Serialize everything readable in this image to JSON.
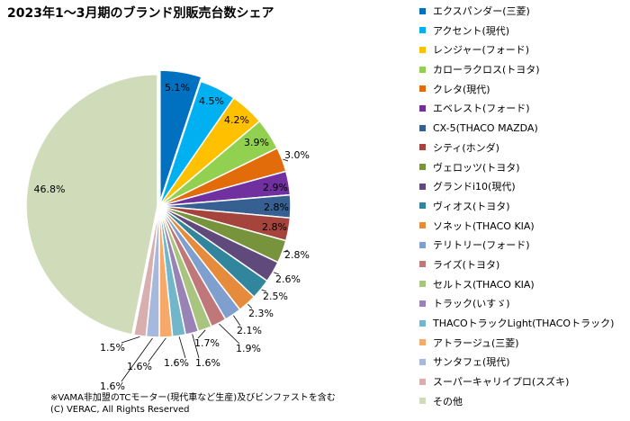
{
  "chart_data": {
    "type": "pie",
    "title": "2023年1〜3月期のブランド別販売台数シェア",
    "slices": [
      {
        "label": "エクスパンダー(三菱)",
        "value": 5.1,
        "color": "#0070c0"
      },
      {
        "label": "アクセント(現代)",
        "value": 4.5,
        "color": "#00b0f0"
      },
      {
        "label": "レンジャー(フォード)",
        "value": 4.2,
        "color": "#ffc000"
      },
      {
        "label": "カローラクロス(トヨタ)",
        "value": 3.9,
        "color": "#92d050"
      },
      {
        "label": "クレタ(現代)",
        "value": 3.0,
        "color": "#e26b0a"
      },
      {
        "label": "エベレスト(フォード)",
        "value": 2.9,
        "color": "#7030a0"
      },
      {
        "label": "CX-5(THACO MAZDA)",
        "value": 2.8,
        "color": "#366092"
      },
      {
        "label": "シティ(ホンダ)",
        "value": 2.8,
        "color": "#a5443c"
      },
      {
        "label": "ヴェロッツ(トヨタ)",
        "value": 2.8,
        "color": "#77933c"
      },
      {
        "label": "グランドi10(現代)",
        "value": 2.6,
        "color": "#604a7b"
      },
      {
        "label": "ヴィオス(トヨタ)",
        "value": 2.5,
        "color": "#31859c"
      },
      {
        "label": "ソネット(THACO KIA)",
        "value": 2.3,
        "color": "#e68a3c"
      },
      {
        "label": "テリトリー(フォード)",
        "value": 2.1,
        "color": "#7f9fcf"
      },
      {
        "label": "ライズ(トヨタ)",
        "value": 1.9,
        "color": "#c0777a"
      },
      {
        "label": "セルトス(THACO KIA)",
        "value": 1.7,
        "color": "#a9c47f"
      },
      {
        "label": "トラック(いすゞ)",
        "value": 1.6,
        "color": "#9983b4"
      },
      {
        "label": "THACOトラックLight(THACOトラック)",
        "value": 1.6,
        "color": "#72b6c9"
      },
      {
        "label": "アトラージュ(三菱)",
        "value": 1.6,
        "color": "#f7a969"
      },
      {
        "label": "サンタフェ(現代)",
        "value": 1.6,
        "color": "#a6b9dc"
      },
      {
        "label": "スーパーキャリイプロ(スズキ)",
        "value": 1.5,
        "color": "#d9aeae"
      },
      {
        "label": "その他",
        "value": 46.8,
        "color": "#d0dcb9"
      }
    ],
    "value_labels": [
      "5.1%",
      "4.5%",
      "4.2%",
      "3.9%",
      "3.0%",
      "2.9%",
      "2.8%",
      "2.8%",
      "2.8%",
      "2.6%",
      "2.5%",
      "2.3%",
      "2.1%",
      "1.9%",
      "1.7%",
      "1.6%",
      "1.6%",
      "1.6%",
      "1.6%",
      "1.5%",
      "46.8%"
    ],
    "legend_position": "right",
    "exploded_first_slice": true
  },
  "footnote": {
    "line1": "※VAMA非加盟のTCモーター(現代車など生産)及びビンファストを含む",
    "line2": "(C) VERAC, All Rights Reserved"
  }
}
